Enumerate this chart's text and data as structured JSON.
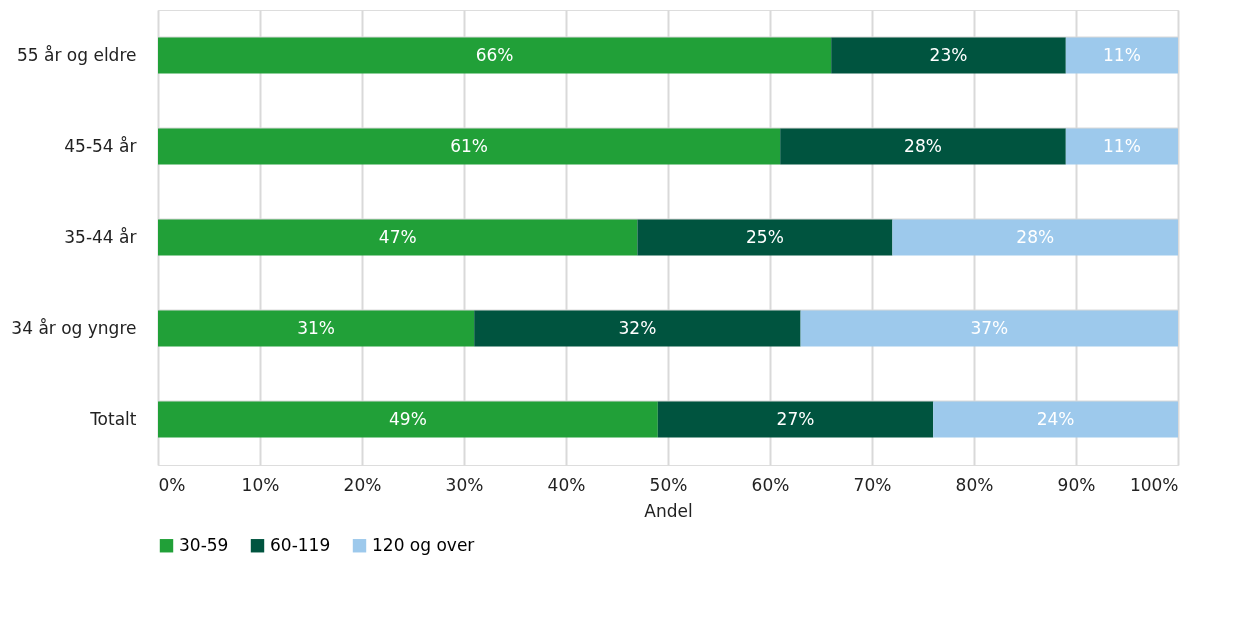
{
  "chart_data": {
    "type": "bar",
    "orientation": "horizontal",
    "stacked": true,
    "xlabel": "Andel",
    "categories": [
      "55 år og eldre",
      "45-54 år",
      "35-44 år",
      "34 år og yngre",
      "Totalt"
    ],
    "series": [
      {
        "name": "30-59",
        "color": "#21a038",
        "values": [
          66,
          61,
          47,
          31,
          49
        ],
        "value_labels": [
          "66%",
          "61%",
          "47%",
          "31%",
          "49%"
        ]
      },
      {
        "name": "60-119",
        "color": "#00543f",
        "values": [
          23,
          28,
          25,
          32,
          27
        ],
        "value_labels": [
          "23%",
          "28%",
          "25%",
          "32%",
          "27%"
        ]
      },
      {
        "name": "120 og over",
        "color": "#9dc9ec",
        "values": [
          11,
          11,
          28,
          37,
          24
        ],
        "value_labels": [
          "11%",
          "11%",
          "28%",
          "37%",
          "24%"
        ]
      }
    ],
    "xlim": [
      0,
      100
    ],
    "xticks": [
      {
        "value": 0,
        "label": "0%"
      },
      {
        "value": 10,
        "label": "10%"
      },
      {
        "value": 20,
        "label": "20%"
      },
      {
        "value": 30,
        "label": "30%"
      },
      {
        "value": 40,
        "label": "40%"
      },
      {
        "value": 50,
        "label": "50%"
      },
      {
        "value": 60,
        "label": "60%"
      },
      {
        "value": 70,
        "label": "70%"
      },
      {
        "value": 80,
        "label": "80%"
      },
      {
        "value": 90,
        "label": "90%"
      },
      {
        "value": 100,
        "label": "100%"
      }
    ],
    "grid": true,
    "legend": "bottom"
  }
}
